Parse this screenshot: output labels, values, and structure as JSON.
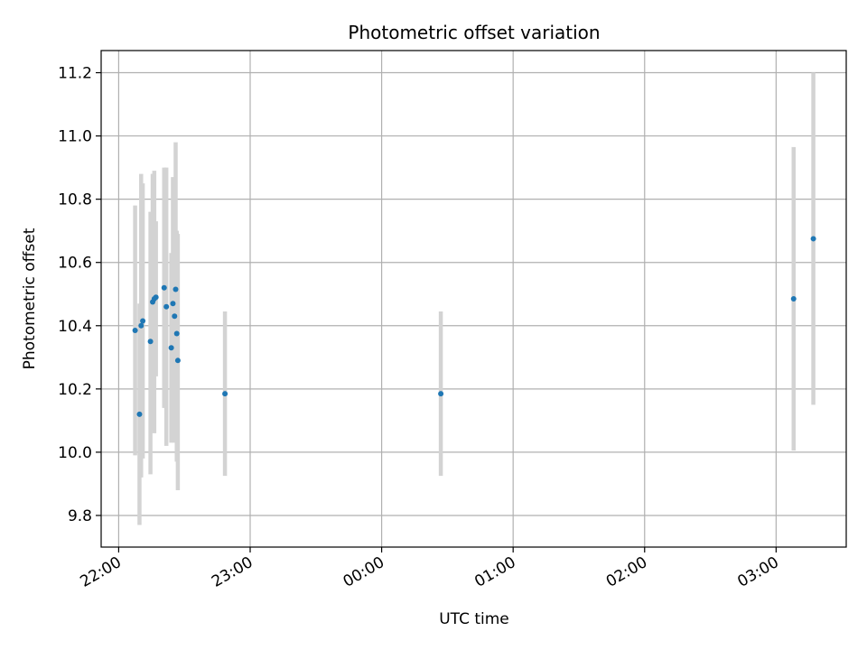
{
  "chart_data": {
    "type": "scatter",
    "title": "Photometric offset variation",
    "xlabel": "UTC time",
    "ylabel": "Photometric offset",
    "x_axis_type": "time",
    "x_range": [
      "21:52",
      "03:32"
    ],
    "ylim": [
      9.7,
      11.27
    ],
    "grid": true,
    "point_color": "#1f77b4",
    "errorbar_color": "#d3d3d3",
    "x_ticks": [
      {
        "time": "22:00",
        "label": "22:00"
      },
      {
        "time": "23:00",
        "label": "23:00"
      },
      {
        "time": "00:00",
        "label": "00:00"
      },
      {
        "time": "01:00",
        "label": "01:00"
      },
      {
        "time": "02:00",
        "label": "02:00"
      },
      {
        "time": "03:00",
        "label": "03:00"
      }
    ],
    "y_ticks": [
      {
        "value": 9.8,
        "label": "9.8"
      },
      {
        "value": 10.0,
        "label": "10.0"
      },
      {
        "value": 10.2,
        "label": "10.2"
      },
      {
        "value": 10.4,
        "label": "10.4"
      },
      {
        "value": 10.6,
        "label": "10.6"
      },
      {
        "value": 10.8,
        "label": "10.8"
      },
      {
        "value": 11.0,
        "label": "11.0"
      },
      {
        "value": 11.2,
        "label": "11.2"
      }
    ],
    "points": [
      {
        "time": "22:07:30",
        "y": 10.385,
        "yerr_low": 9.99,
        "yerr_high": 10.78
      },
      {
        "time": "22:09:30",
        "y": 10.12,
        "yerr_low": 9.77,
        "yerr_high": 10.47
      },
      {
        "time": "22:10:15",
        "y": 10.4,
        "yerr_low": 9.92,
        "yerr_high": 10.88
      },
      {
        "time": "22:11:00",
        "y": 10.415,
        "yerr_low": 9.98,
        "yerr_high": 10.85
      },
      {
        "time": "22:14:30",
        "y": 10.35,
        "yerr_low": 9.93,
        "yerr_high": 10.76
      },
      {
        "time": "22:15:30",
        "y": 10.475,
        "yerr_low": 10.07,
        "yerr_high": 10.88
      },
      {
        "time": "22:16:15",
        "y": 10.485,
        "yerr_low": 10.06,
        "yerr_high": 10.89
      },
      {
        "time": "22:17:00",
        "y": 10.49,
        "yerr_low": 10.24,
        "yerr_high": 10.73
      },
      {
        "time": "22:20:45",
        "y": 10.52,
        "yerr_low": 10.14,
        "yerr_high": 10.9
      },
      {
        "time": "22:21:45",
        "y": 10.46,
        "yerr_low": 10.02,
        "yerr_high": 10.9
      },
      {
        "time": "22:24:00",
        "y": 10.33,
        "yerr_low": 10.03,
        "yerr_high": 10.63
      },
      {
        "time": "22:24:45",
        "y": 10.47,
        "yerr_low": 10.09,
        "yerr_high": 10.87
      },
      {
        "time": "22:25:30",
        "y": 10.43,
        "yerr_low": 10.03,
        "yerr_high": 10.83
      },
      {
        "time": "22:26:00",
        "y": 10.515,
        "yerr_low": 10.05,
        "yerr_high": 10.98
      },
      {
        "time": "22:26:30",
        "y": 10.375,
        "yerr_low": 9.97,
        "yerr_high": 10.7
      },
      {
        "time": "22:27:00",
        "y": 10.29,
        "yerr_low": 9.88,
        "yerr_high": 10.69
      },
      {
        "time": "22:48:30",
        "y": 10.185,
        "yerr_low": 9.925,
        "yerr_high": 10.445
      },
      {
        "time": "00:27:00",
        "y": 10.185,
        "yerr_low": 9.925,
        "yerr_high": 10.445
      },
      {
        "time": "03:08:00",
        "y": 10.485,
        "yerr_low": 10.005,
        "yerr_high": 10.965
      },
      {
        "time": "03:17:00",
        "y": 10.675,
        "yerr_low": 10.15,
        "yerr_high": 11.2
      }
    ]
  }
}
